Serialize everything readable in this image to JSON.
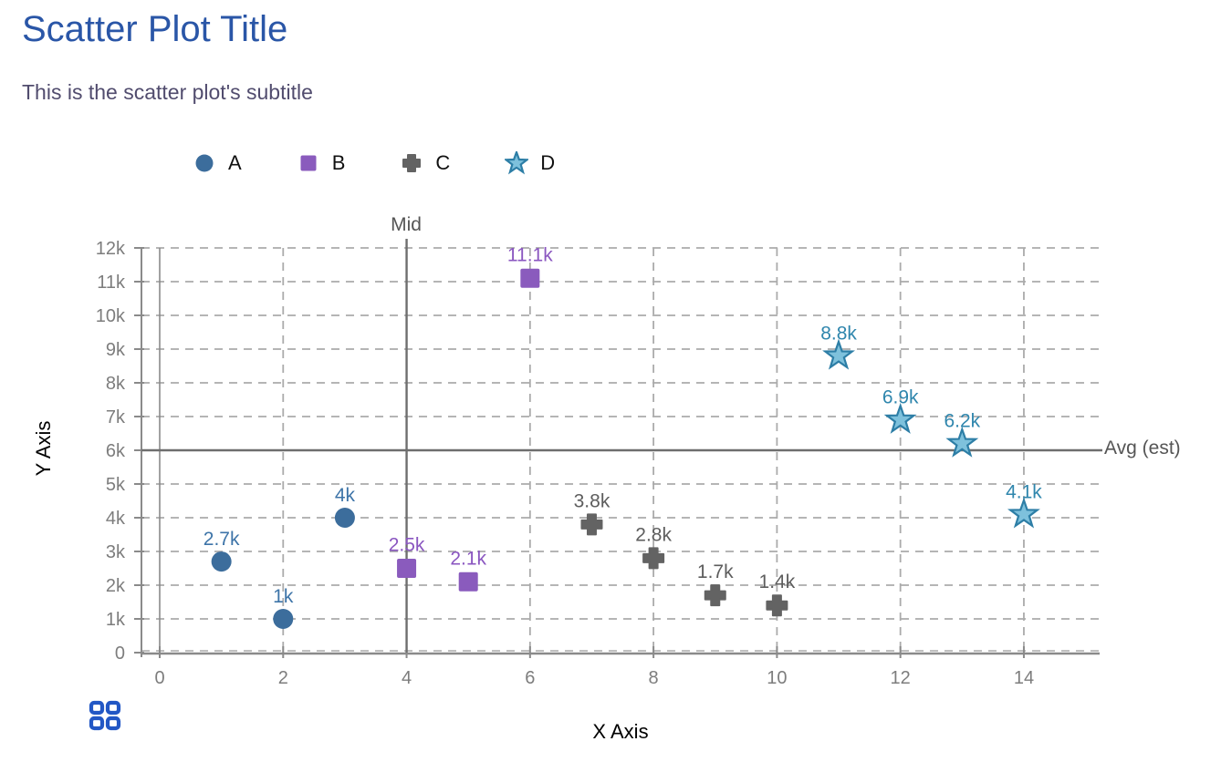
{
  "page": {
    "title": "Scatter Plot Title",
    "subtitle": "This is the scatter plot's subtitle"
  },
  "colors": {
    "title": "#2a56a7",
    "subtitle": "#514c6e",
    "grid_line": "#ababab",
    "axis_line": "#8a8a8a",
    "tick_label": "#7d7d7d",
    "reference_line": "#6e6e6e",
    "reference_label": "#555555",
    "grid_icon": "#2257c5"
  },
  "legend": {
    "items": [
      {
        "label": "A",
        "marker": "circle",
        "color": "#3c6d9c"
      },
      {
        "label": "B",
        "marker": "square",
        "color": "#8a5bbd"
      },
      {
        "label": "C",
        "marker": "cross",
        "color": "#636363"
      },
      {
        "label": "D",
        "marker": "star",
        "color": "#7ec1dc",
        "stroke": "#2d7ea6"
      }
    ]
  },
  "chart_data": {
    "type": "scatter",
    "title": "Scatter Plot Title",
    "subtitle": "This is the scatter plot's subtitle",
    "xlabel": "X Axis",
    "ylabel": "Y Axis",
    "xlim": [
      0,
      15.2
    ],
    "ylim": [
      0,
      12000
    ],
    "grid": true,
    "legend_position": "top",
    "x_ticks": [
      0,
      2,
      4,
      6,
      8,
      10,
      12,
      14
    ],
    "y_ticks": [
      {
        "value": 0,
        "label": "0"
      },
      {
        "value": 1000,
        "label": "1k"
      },
      {
        "value": 2000,
        "label": "2k"
      },
      {
        "value": 3000,
        "label": "3k"
      },
      {
        "value": 4000,
        "label": "4k"
      },
      {
        "value": 5000,
        "label": "5k"
      },
      {
        "value": 6000,
        "label": "6k"
      },
      {
        "value": 7000,
        "label": "7k"
      },
      {
        "value": 8000,
        "label": "8k"
      },
      {
        "value": 9000,
        "label": "9k"
      },
      {
        "value": 10000,
        "label": "10k"
      },
      {
        "value": 11000,
        "label": "11k"
      },
      {
        "value": 12000,
        "label": "12k"
      }
    ],
    "series": [
      {
        "name": "A",
        "marker": "circle",
        "color": "#3c6d9c",
        "label_color": "#3d74a8",
        "points": [
          {
            "x": 1,
            "y": 2700,
            "label": "2.7k"
          },
          {
            "x": 2,
            "y": 1000,
            "label": "1k"
          },
          {
            "x": 3,
            "y": 4000,
            "label": "4k"
          }
        ]
      },
      {
        "name": "B",
        "marker": "square",
        "color": "#8a5bbd",
        "label_color": "#8a56c0",
        "points": [
          {
            "x": 4,
            "y": 2500,
            "label": "2.5k"
          },
          {
            "x": 5,
            "y": 2100,
            "label": "2.1k"
          },
          {
            "x": 6,
            "y": 11100,
            "label": "11.1k"
          }
        ]
      },
      {
        "name": "C",
        "marker": "cross",
        "color": "#636363",
        "label_color": "#5d5d5d",
        "points": [
          {
            "x": 7,
            "y": 3800,
            "label": "3.8k"
          },
          {
            "x": 8,
            "y": 2800,
            "label": "2.8k"
          },
          {
            "x": 9,
            "y": 1700,
            "label": "1.7k"
          },
          {
            "x": 10,
            "y": 1400,
            "label": "1.4k"
          }
        ]
      },
      {
        "name": "D",
        "marker": "star",
        "color": "#7ec1dc",
        "stroke": "#2d7ea6",
        "label_color": "#2f86ad",
        "points": [
          {
            "x": 11,
            "y": 8800,
            "label": "8.8k"
          },
          {
            "x": 12,
            "y": 6900,
            "label": "6.9k"
          },
          {
            "x": 13,
            "y": 6200,
            "label": "6.2k"
          },
          {
            "x": 14,
            "y": 4100,
            "label": "4.1k"
          }
        ]
      }
    ],
    "reference_lines": [
      {
        "orientation": "vertical",
        "x": 4,
        "label": "Mid"
      },
      {
        "orientation": "horizontal",
        "y": 6000,
        "label": "Avg (est)"
      }
    ]
  }
}
